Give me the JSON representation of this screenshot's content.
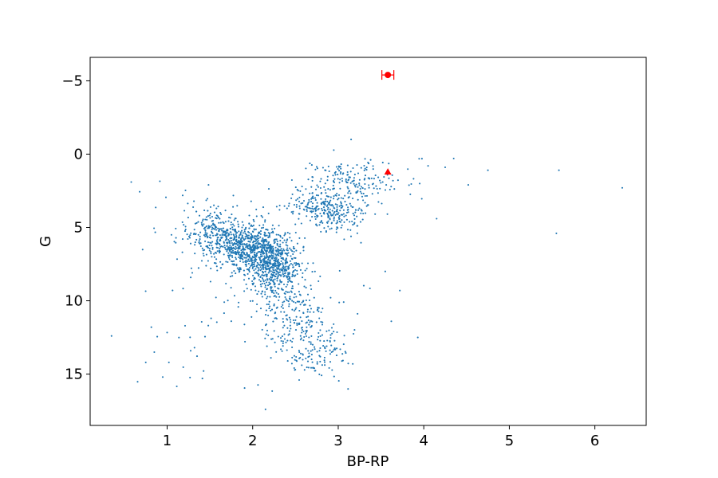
{
  "chart_data": {
    "type": "scatter",
    "title": "",
    "xlabel": "BP-RP",
    "ylabel": "G",
    "xlim": [
      0.1,
      6.6
    ],
    "ylim": [
      18.5,
      -6.6
    ],
    "y_inverted": true,
    "grid": false,
    "legend": "none",
    "xticks": [
      1,
      2,
      3,
      4,
      5,
      6
    ],
    "xtick_labels": [
      "1",
      "2",
      "3",
      "4",
      "5",
      "6"
    ],
    "yticks": [
      -5,
      0,
      5,
      10,
      15
    ],
    "ytick_labels": [
      "−5",
      "0",
      "5",
      "10",
      "15"
    ],
    "colors": {
      "stars": "#1f77b4",
      "highlight": "#ff0000"
    },
    "point_count_estimate": 2200,
    "density_model": [
      {
        "name": "main-sequence-diagonal",
        "weight": 0.34,
        "x": [
          1.4,
          2.3
        ],
        "y": [
          5.0,
          7.6
        ],
        "spread_x": 0.18,
        "spread_y": 0.9
      },
      {
        "name": "main-sequence-core",
        "weight": 0.22,
        "x": [
          1.9,
          2.3
        ],
        "y": [
          5.8,
          7.5
        ],
        "spread_x": 0.16,
        "spread_y": 0.8
      },
      {
        "name": "lower-sequence",
        "weight": 0.2,
        "x": [
          2.2,
          2.8
        ],
        "y": [
          7.5,
          14.5
        ],
        "spread_x": 0.2,
        "spread_y": 0.8
      },
      {
        "name": "giant-clump",
        "weight": 0.12,
        "x": [
          2.6,
          3.1
        ],
        "y": [
          3.0,
          4.5
        ],
        "spread_x": 0.15,
        "spread_y": 0.6
      },
      {
        "name": "giant-branch",
        "weight": 0.07,
        "x": [
          2.9,
          3.4
        ],
        "y": [
          1.0,
          3.0
        ],
        "spread_x": 0.2,
        "spread_y": 0.6
      },
      {
        "name": "field-scatter",
        "weight": 0.05,
        "x": [
          0.6,
          3.4
        ],
        "y": [
          1.5,
          16.5
        ],
        "spread_x": 0.0,
        "spread_y": 0.0
      }
    ],
    "outliers": [
      {
        "x": 6.32,
        "y": 2.3
      },
      {
        "x": 5.58,
        "y": 1.1
      },
      {
        "x": 5.55,
        "y": 5.4
      },
      {
        "x": 4.75,
        "y": 1.1
      },
      {
        "x": 4.52,
        "y": 2.1
      },
      {
        "x": 4.35,
        "y": 0.3
      },
      {
        "x": 4.25,
        "y": 0.9
      },
      {
        "x": 4.15,
        "y": 4.4
      },
      {
        "x": 3.93,
        "y": 12.5
      },
      {
        "x": 3.72,
        "y": 9.3
      },
      {
        "x": 0.35,
        "y": 12.4
      },
      {
        "x": 0.75,
        "y": 14.2
      },
      {
        "x": 0.85,
        "y": 13.5
      },
      {
        "x": 1.02,
        "y": 14.2
      },
      {
        "x": 1.32,
        "y": 13.2
      },
      {
        "x": 2.15,
        "y": 17.4
      },
      {
        "x": 3.15,
        "y": -1.0
      },
      {
        "x": 4.05,
        "y": 0.8
      },
      {
        "x": 3.62,
        "y": 11.4
      },
      {
        "x": 3.55,
        "y": 8.0
      },
      {
        "x": 0.58,
        "y": 1.9
      }
    ],
    "highlight": [
      {
        "name": "star-with-errorbar",
        "marker": "circle",
        "x": 3.58,
        "y": -5.4,
        "x_err": 0.07
      },
      {
        "name": "triangle-marker",
        "marker": "triangle",
        "x": 3.58,
        "y": 1.2
      }
    ]
  }
}
